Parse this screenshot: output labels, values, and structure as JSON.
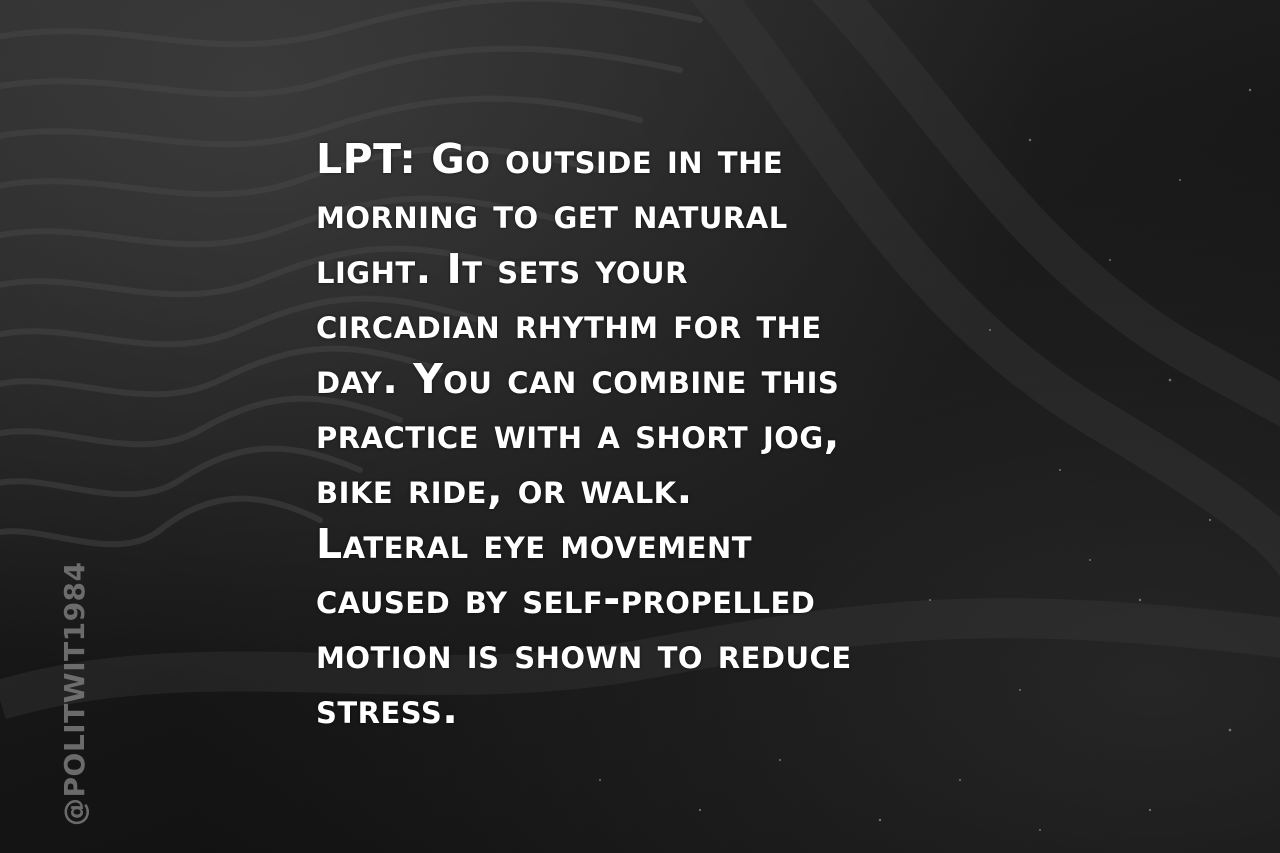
{
  "quote": {
    "lines": [
      "LPT: Go outside in the",
      "morning to get natural",
      "light. It sets your",
      "circadian rhythm for the",
      "day. You can combine this",
      "practice with a short jog,",
      "bike ride, or walk.",
      "Lateral eye movement",
      "caused by self-propelled",
      "motion is shown to reduce",
      "stress."
    ]
  },
  "watermark": {
    "text": "@POLITWIT1984"
  },
  "background": {
    "description_color": "#1a1a1a",
    "text_color": "#ffffff",
    "watermark_color": "#7a7a7a"
  }
}
